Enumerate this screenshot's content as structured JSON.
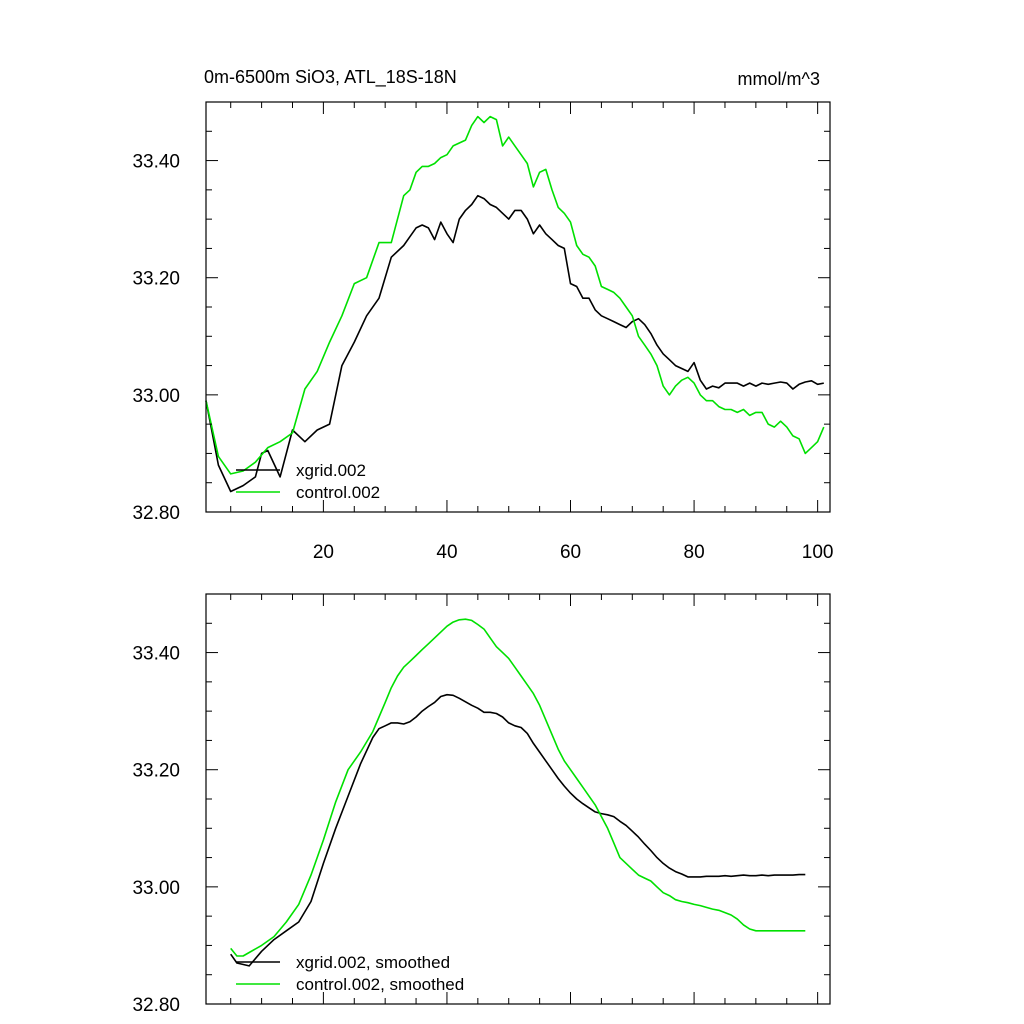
{
  "chart_data": [
    {
      "type": "line",
      "title": "0m-6500m SiO3, ATL_18S-18N",
      "units": "mmol/m^3",
      "xlim": [
        1,
        102
      ],
      "ylim": [
        32.8,
        33.5
      ],
      "x_ticks": [
        20,
        40,
        60,
        80,
        100
      ],
      "y_ticks": [
        32.8,
        33.0,
        33.2,
        33.4
      ],
      "y_tick_labels": [
        "32.80",
        "33.00",
        "33.20",
        "33.40"
      ],
      "legend": [
        "xgrid.002",
        "control.002"
      ],
      "series": [
        {
          "name": "xgrid.002",
          "color": "#000000",
          "x": [
            1,
            3,
            5,
            7,
            9,
            10,
            11,
            13,
            15,
            17,
            19,
            21,
            23,
            25,
            27,
            29,
            31,
            33,
            34,
            35,
            36,
            37,
            38,
            39,
            40,
            41,
            42,
            43,
            44,
            45,
            46,
            47,
            48,
            49,
            50,
            51,
            52,
            53,
            54,
            55,
            56,
            57,
            58,
            59,
            60,
            61,
            62,
            63,
            64,
            65,
            66,
            67,
            68,
            69,
            70,
            71,
            72,
            73,
            74,
            75,
            76,
            77,
            78,
            79,
            80,
            81,
            82,
            83,
            84,
            85,
            86,
            87,
            88,
            89,
            90,
            91,
            92,
            93,
            94,
            95,
            96,
            97,
            98,
            99,
            100,
            101
          ],
          "values": [
            32.99,
            32.88,
            32.835,
            32.845,
            32.86,
            32.9,
            32.905,
            32.86,
            32.94,
            32.92,
            32.94,
            32.95,
            33.05,
            33.09,
            33.135,
            33.165,
            33.235,
            33.255,
            33.27,
            33.285,
            33.29,
            33.285,
            33.265,
            33.295,
            33.275,
            33.26,
            33.3,
            33.315,
            33.325,
            33.34,
            33.335,
            33.325,
            33.32,
            33.31,
            33.3,
            33.315,
            33.315,
            33.3,
            33.275,
            33.29,
            33.275,
            33.265,
            33.255,
            33.25,
            33.19,
            33.185,
            33.165,
            33.165,
            33.145,
            33.135,
            33.13,
            33.125,
            33.12,
            33.115,
            33.125,
            33.13,
            33.12,
            33.105,
            33.085,
            33.07,
            33.06,
            33.05,
            33.045,
            33.04,
            33.055,
            33.025,
            33.01,
            33.015,
            33.012,
            33.02,
            33.02,
            33.02,
            33.015,
            33.02,
            33.015,
            33.02,
            33.018,
            33.02,
            33.022,
            33.02,
            33.01,
            33.018,
            33.022,
            33.024,
            33.018,
            33.02
          ]
        },
        {
          "name": "control.002",
          "color": "#00e000",
          "x": [
            1,
            3,
            5,
            7,
            9,
            11,
            13,
            15,
            17,
            19,
            21,
            23,
            25,
            27,
            29,
            31,
            33,
            34,
            35,
            36,
            37,
            38,
            39,
            40,
            41,
            42,
            43,
            44,
            45,
            46,
            47,
            48,
            49,
            50,
            51,
            52,
            53,
            54,
            55,
            56,
            57,
            58,
            59,
            60,
            61,
            62,
            63,
            64,
            65,
            66,
            67,
            68,
            69,
            70,
            71,
            72,
            73,
            74,
            75,
            76,
            77,
            78,
            79,
            80,
            81,
            82,
            83,
            84,
            85,
            86,
            87,
            88,
            89,
            90,
            91,
            92,
            93,
            94,
            95,
            96,
            97,
            98,
            99,
            100,
            101
          ],
          "values": [
            32.99,
            32.895,
            32.865,
            32.87,
            32.885,
            32.91,
            32.92,
            32.935,
            33.01,
            33.04,
            33.09,
            33.135,
            33.19,
            33.2,
            33.26,
            33.26,
            33.34,
            33.35,
            33.38,
            33.39,
            33.39,
            33.395,
            33.405,
            33.41,
            33.425,
            33.43,
            33.435,
            33.46,
            33.475,
            33.465,
            33.475,
            33.47,
            33.425,
            33.44,
            33.425,
            33.41,
            33.395,
            33.355,
            33.38,
            33.385,
            33.35,
            33.32,
            33.31,
            33.295,
            33.255,
            33.24,
            33.235,
            33.22,
            33.185,
            33.18,
            33.175,
            33.165,
            33.15,
            33.135,
            33.1,
            33.085,
            33.07,
            33.05,
            33.015,
            33.0,
            33.015,
            33.025,
            33.03,
            33.02,
            33.0,
            32.99,
            32.99,
            32.98,
            32.975,
            32.975,
            32.97,
            32.975,
            32.965,
            32.97,
            32.97,
            32.95,
            32.945,
            32.955,
            32.945,
            32.93,
            32.925,
            32.9,
            32.91,
            32.92,
            32.945
          ]
        }
      ]
    },
    {
      "type": "line",
      "xlim": [
        1,
        102
      ],
      "ylim": [
        32.8,
        33.5
      ],
      "x_ticks": [
        20,
        40,
        60,
        80,
        100
      ],
      "y_ticks": [
        32.8,
        33.0,
        33.2,
        33.4
      ],
      "y_tick_labels": [
        "32.80",
        "33.00",
        "33.20",
        "33.40"
      ],
      "legend": [
        "xgrid.002, smoothed",
        "control.002, smoothed"
      ],
      "series": [
        {
          "name": "xgrid.002, smoothed",
          "color": "#000000",
          "x": [
            5,
            6,
            8,
            10,
            12,
            14,
            16,
            18,
            20,
            22,
            24,
            26,
            28,
            29,
            30,
            31,
            32,
            33,
            34,
            35,
            36,
            37,
            38,
            39,
            40,
            41,
            42,
            43,
            44,
            45,
            46,
            47,
            48,
            49,
            50,
            51,
            52,
            53,
            54,
            55,
            56,
            57,
            58,
            59,
            60,
            61,
            62,
            63,
            64,
            65,
            66,
            67,
            68,
            69,
            70,
            71,
            72,
            73,
            74,
            75,
            76,
            77,
            78,
            79,
            80,
            81,
            82,
            83,
            84,
            85,
            86,
            87,
            88,
            89,
            90,
            91,
            92,
            93,
            94,
            95,
            96,
            97,
            98
          ],
          "values": [
            32.885,
            32.87,
            32.865,
            32.89,
            32.91,
            32.925,
            32.94,
            32.975,
            33.04,
            33.1,
            33.155,
            33.21,
            33.255,
            33.27,
            33.275,
            33.28,
            33.28,
            33.278,
            33.282,
            33.29,
            33.3,
            33.308,
            33.315,
            33.325,
            33.328,
            33.327,
            33.322,
            33.316,
            33.31,
            33.305,
            33.298,
            33.298,
            33.296,
            33.29,
            33.28,
            33.275,
            33.272,
            33.262,
            33.245,
            33.23,
            33.215,
            33.2,
            33.185,
            33.172,
            33.16,
            33.15,
            33.142,
            33.135,
            33.128,
            33.125,
            33.123,
            33.12,
            33.112,
            33.105,
            33.095,
            33.085,
            33.073,
            33.062,
            33.05,
            33.04,
            33.032,
            33.026,
            33.022,
            33.017,
            33.017,
            33.017,
            33.018,
            33.018,
            33.018,
            33.019,
            33.018,
            33.019,
            33.02,
            33.019,
            33.019,
            33.02,
            33.019,
            33.02,
            33.02,
            33.02,
            33.02,
            33.021,
            33.021
          ]
        },
        {
          "name": "control.002, smoothed",
          "color": "#00e000",
          "x": [
            5,
            6,
            7,
            8,
            10,
            12,
            14,
            16,
            18,
            20,
            22,
            24,
            26,
            28,
            29,
            30,
            31,
            32,
            33,
            34,
            35,
            36,
            37,
            38,
            39,
            40,
            41,
            42,
            43,
            44,
            45,
            46,
            47,
            48,
            49,
            50,
            51,
            52,
            53,
            54,
            55,
            56,
            57,
            58,
            59,
            60,
            61,
            62,
            63,
            64,
            65,
            66,
            67,
            68,
            69,
            70,
            71,
            72,
            73,
            74,
            75,
            76,
            77,
            78,
            79,
            80,
            81,
            82,
            83,
            84,
            85,
            86,
            87,
            88,
            89,
            90,
            91,
            92,
            93,
            94,
            95,
            96,
            97,
            98
          ],
          "values": [
            32.895,
            32.882,
            32.882,
            32.888,
            32.9,
            32.915,
            32.94,
            32.97,
            33.02,
            33.08,
            33.145,
            33.2,
            33.23,
            33.265,
            33.29,
            33.315,
            33.34,
            33.36,
            33.375,
            33.385,
            33.395,
            33.405,
            33.415,
            33.425,
            33.435,
            33.445,
            33.452,
            33.456,
            33.457,
            33.455,
            33.448,
            33.44,
            33.425,
            33.41,
            33.4,
            33.39,
            33.375,
            33.36,
            33.345,
            33.33,
            33.31,
            33.285,
            33.26,
            33.235,
            33.215,
            33.2,
            33.185,
            33.17,
            33.155,
            33.14,
            33.12,
            33.1,
            33.075,
            33.05,
            33.04,
            33.03,
            33.02,
            33.015,
            33.01,
            33.0,
            32.99,
            32.985,
            32.978,
            32.975,
            32.973,
            32.97,
            32.968,
            32.965,
            32.962,
            32.96,
            32.956,
            32.952,
            32.945,
            32.935,
            32.928,
            32.925,
            32.925,
            32.925,
            32.925,
            32.925,
            32.925,
            32.925,
            32.925,
            32.925
          ]
        }
      ]
    }
  ]
}
